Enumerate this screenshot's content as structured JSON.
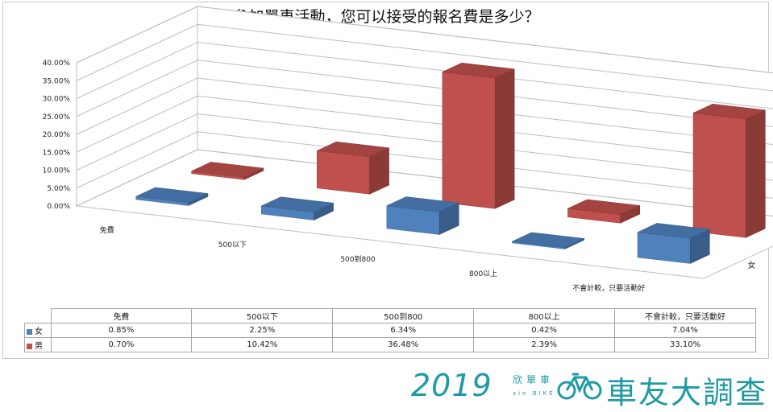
{
  "colors": {
    "female": "#4f81bd",
    "male": "#c0504d",
    "accent": "#1e9aa6"
  },
  "chart_data": {
    "type": "bar",
    "title": "參加單車活動，您可以接受的報名費是多少？",
    "categories": [
      "免費",
      "500以下",
      "500到800",
      "800以上",
      "不會計較，只要活動好"
    ],
    "series": [
      {
        "name": "女",
        "values": [
          0.85,
          2.25,
          6.34,
          0.42,
          7.04
        ],
        "labels": [
          "0.85%",
          "2.25%",
          "6.34%",
          "0.42%",
          "7.04%"
        ]
      },
      {
        "name": "男",
        "values": [
          0.7,
          10.42,
          36.48,
          2.39,
          33.1
        ],
        "labels": [
          "0.70%",
          "10.42%",
          "36.48%",
          "2.39%",
          "33.10%"
        ]
      }
    ],
    "ylim": [
      0,
      40
    ],
    "yticks": [
      "0.00%",
      "5.00%",
      "10.00%",
      "15.00%",
      "20.00%",
      "25.00%",
      "30.00%",
      "35.00%",
      "40.00%"
    ],
    "grid": true,
    "style": "3d-column",
    "data_table": true
  },
  "footer": {
    "year": "2019",
    "brand_zh": "欣單車",
    "brand_en": "xin BIKE",
    "survey": "車友大調查",
    "bike_icon": "bicycle-icon"
  }
}
